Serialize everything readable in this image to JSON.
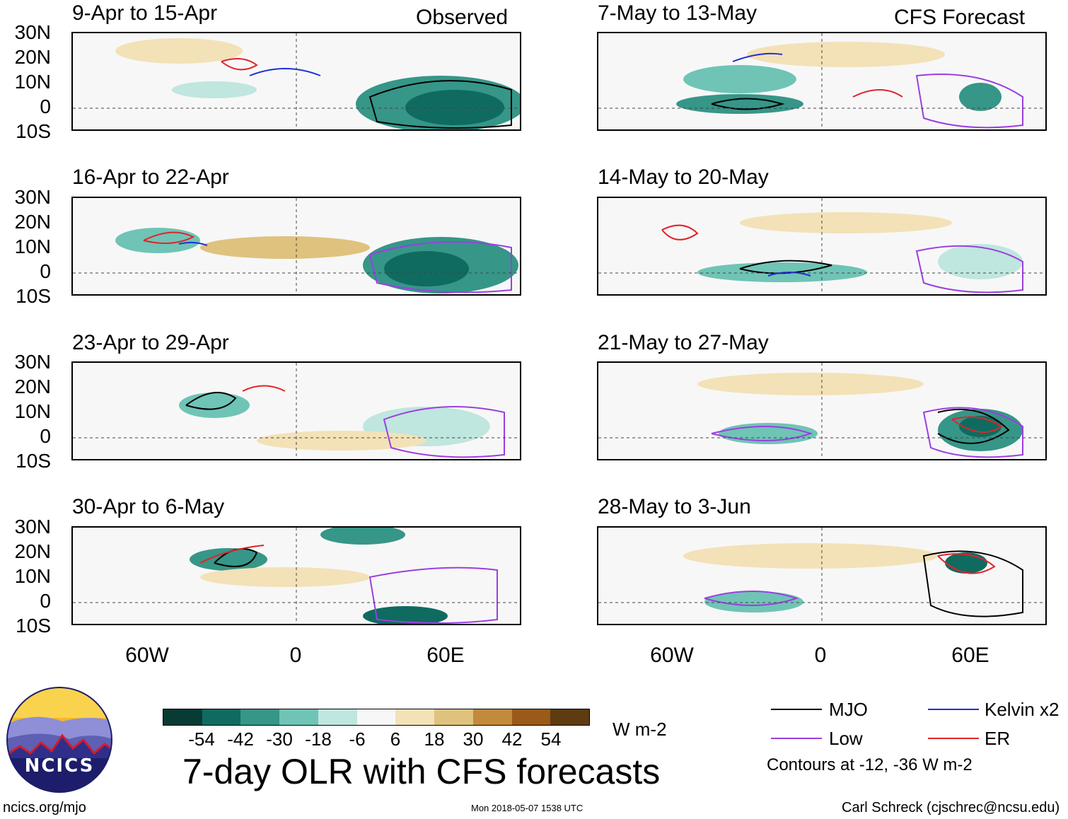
{
  "panel_titles": [
    "9-Apr to 15-Apr",
    "16-Apr to 22-Apr",
    "23-Apr to 29-Apr",
    "30-Apr to 6-May",
    "7-May to 13-May",
    "14-May to 20-May",
    "21-May to 27-May",
    "28-May to 3-Jun"
  ],
  "header_left": "Observed",
  "header_right": "CFS Forecast",
  "lat_labels": [
    "30N",
    "20N",
    "10N",
    "0",
    "10S"
  ],
  "lon_labels": [
    "60W",
    "0",
    "60E"
  ],
  "colorbar": {
    "colors": [
      "#073b33",
      "#0f6b60",
      "#369688",
      "#6fc4b6",
      "#bfe6df",
      "#f7f7f7",
      "#f3e1b7",
      "#dfc27e",
      "#c38a3c",
      "#9a5a1a",
      "#5f3b11"
    ],
    "ticks": [
      "-54",
      "-42",
      "-30",
      "-18",
      "-6",
      "6",
      "18",
      "30",
      "42",
      "54"
    ],
    "units": "W m-2"
  },
  "title": "7-day OLR with CFS forecasts",
  "legend": {
    "items": [
      {
        "label": "MJO",
        "color": "#000000"
      },
      {
        "label": "Kelvin x2",
        "color": "#1f2fd6"
      },
      {
        "label": "Low",
        "color": "#9b3fe0"
      },
      {
        "label": "ER",
        "color": "#e0242a"
      }
    ],
    "note": "Contours at -12, -36 W m-2"
  },
  "logo_text": "NCICS",
  "footer": {
    "left": "ncics.org/mjo",
    "center": "Mon 2018-05-07 1538 UTC",
    "right": "Carl Schreck (cjschrec@ncsu.edu)"
  }
}
